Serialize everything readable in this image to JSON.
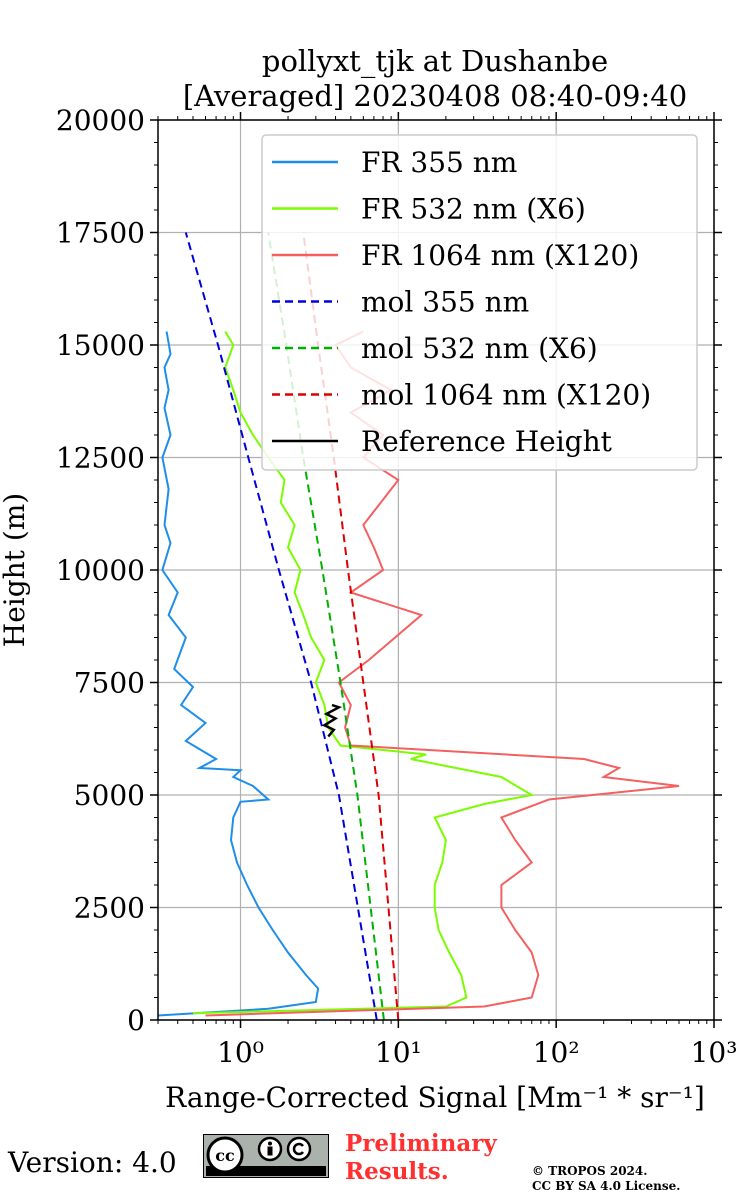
{
  "chart_data": {
    "type": "line",
    "title": "pollyxt_tjk at Dushanbe",
    "subtitle": "[Averaged] 20230408 08:40-09:40",
    "xlabel": "Range-Corrected Signal [Mm⁻¹ * sr⁻¹]",
    "ylabel": "Height (m)",
    "xscale": "log",
    "xlim": [
      0.3,
      1000
    ],
    "ylim": [
      0,
      20000
    ],
    "x_tick_labels": [
      "10⁰",
      "10¹",
      "10²",
      "10³"
    ],
    "y_tick_labels": [
      "0",
      "2500",
      "5000",
      "7500",
      "10000",
      "12500",
      "15000",
      "17500",
      "20000"
    ],
    "grid": true,
    "legend_position": "upper right",
    "series": [
      {
        "name": "FR 355 nm",
        "color": "#1f8ee8",
        "style": "solid",
        "points": [
          [
            0.3,
            100
          ],
          [
            1.5,
            250
          ],
          [
            3.0,
            400
          ],
          [
            3.1,
            700
          ],
          [
            2.6,
            1000
          ],
          [
            2.0,
            1500
          ],
          [
            1.6,
            2000
          ],
          [
            1.3,
            2500
          ],
          [
            1.1,
            3000
          ],
          [
            0.95,
            3500
          ],
          [
            0.87,
            4000
          ],
          [
            0.9,
            4500
          ],
          [
            1.0,
            4850
          ],
          [
            1.5,
            4900
          ],
          [
            1.2,
            5200
          ],
          [
            0.9,
            5400
          ],
          [
            1.0,
            5550
          ],
          [
            0.55,
            5600
          ],
          [
            0.7,
            5800
          ],
          [
            0.45,
            6200
          ],
          [
            0.6,
            6600
          ],
          [
            0.42,
            7000
          ],
          [
            0.5,
            7400
          ],
          [
            0.38,
            7800
          ],
          [
            0.45,
            8500
          ],
          [
            0.35,
            9000
          ],
          [
            0.4,
            9500
          ],
          [
            0.32,
            10000
          ],
          [
            0.36,
            10600
          ],
          [
            0.33,
            11000
          ],
          [
            0.35,
            11800
          ],
          [
            0.32,
            12500
          ],
          [
            0.36,
            13000
          ],
          [
            0.33,
            13600
          ],
          [
            0.35,
            14000
          ],
          [
            0.33,
            14500
          ],
          [
            0.36,
            14800
          ],
          [
            0.34,
            15300
          ]
        ]
      },
      {
        "name": "FR 532 nm (X6)",
        "color": "#7cfc00",
        "style": "solid",
        "points": [
          [
            0.5,
            150
          ],
          [
            20,
            300
          ],
          [
            27,
            500
          ],
          [
            25,
            1000
          ],
          [
            21,
            1500
          ],
          [
            18,
            2000
          ],
          [
            17,
            2500
          ],
          [
            17,
            3000
          ],
          [
            19,
            3500
          ],
          [
            20,
            4000
          ],
          [
            17,
            4500
          ],
          [
            35,
            4800
          ],
          [
            70,
            5000
          ],
          [
            45,
            5400
          ],
          [
            12,
            5800
          ],
          [
            15,
            5900
          ],
          [
            4.3,
            6100
          ],
          [
            3.6,
            6500
          ],
          [
            3.4,
            7000
          ],
          [
            3.0,
            7500
          ],
          [
            3.4,
            8000
          ],
          [
            2.8,
            8500
          ],
          [
            2.5,
            9000
          ],
          [
            2.2,
            9500
          ],
          [
            2.4,
            10000
          ],
          [
            2.0,
            10500
          ],
          [
            2.2,
            11000
          ],
          [
            1.8,
            11500
          ],
          [
            1.9,
            12000
          ],
          [
            1.5,
            12500
          ],
          [
            1.2,
            13000
          ],
          [
            1.0,
            13500
          ],
          [
            0.9,
            14000
          ],
          [
            0.8,
            14500
          ],
          [
            0.9,
            15000
          ],
          [
            0.8,
            15300
          ]
        ]
      },
      {
        "name": "FR 1064 nm (X120)",
        "color": "#f46060",
        "style": "solid",
        "points": [
          [
            0.6,
            100
          ],
          [
            35,
            300
          ],
          [
            70,
            500
          ],
          [
            77,
            1000
          ],
          [
            70,
            1500
          ],
          [
            55,
            2000
          ],
          [
            45,
            2500
          ],
          [
            45,
            3000
          ],
          [
            70,
            3500
          ],
          [
            55,
            4000
          ],
          [
            45,
            4500
          ],
          [
            90,
            4900
          ],
          [
            600,
            5200
          ],
          [
            200,
            5400
          ],
          [
            250,
            5600
          ],
          [
            150,
            5800
          ],
          [
            5.0,
            6100
          ],
          [
            4.6,
            6500
          ],
          [
            5.0,
            7000
          ],
          [
            4.2,
            7500
          ],
          [
            6.5,
            8000
          ],
          [
            14,
            9000
          ],
          [
            5.0,
            9500
          ],
          [
            8.0,
            10000
          ],
          [
            7.0,
            10500
          ],
          [
            6.0,
            11000
          ],
          [
            10,
            12000
          ],
          [
            6.0,
            12500
          ],
          [
            8.0,
            13000
          ],
          [
            5.0,
            13500
          ],
          [
            9.0,
            14000
          ],
          [
            5.0,
            14500
          ],
          [
            4.0,
            15000
          ],
          [
            6.0,
            15300
          ]
        ]
      },
      {
        "name": "mol 355 nm",
        "color": "#0000dd",
        "style": "dashed",
        "points": [
          [
            7.3,
            0
          ],
          [
            4.2,
            5000
          ],
          [
            2.8,
            7500
          ],
          [
            1.75,
            10000
          ],
          [
            1.12,
            12500
          ],
          [
            0.72,
            15000
          ],
          [
            0.45,
            17500
          ]
        ]
      },
      {
        "name": "mol 532 nm (X6)",
        "color": "#00b000",
        "style": "dashed",
        "points": [
          [
            8.1,
            0
          ],
          [
            5.5,
            5000
          ],
          [
            4.3,
            7500
          ],
          [
            3.3,
            10000
          ],
          [
            2.5,
            12500
          ],
          [
            1.95,
            15000
          ],
          [
            1.5,
            17500
          ]
        ]
      },
      {
        "name": "mol 1064 nm (X120)",
        "color": "#dd0000",
        "style": "dashed",
        "points": [
          [
            10,
            0
          ],
          [
            7.5,
            5000
          ],
          [
            6.0,
            7500
          ],
          [
            4.8,
            10000
          ],
          [
            3.9,
            12500
          ],
          [
            3.1,
            15000
          ],
          [
            2.5,
            17500
          ]
        ]
      },
      {
        "name": "Reference Height",
        "color": "#000000",
        "style": "solid",
        "points": [
          [
            3.6,
            6300
          ],
          [
            3.9,
            6450
          ],
          [
            3.4,
            6550
          ],
          [
            4.0,
            6700
          ],
          [
            3.5,
            6800
          ],
          [
            4.2,
            6950
          ],
          [
            3.8,
            7000
          ]
        ]
      }
    ]
  },
  "footer": {
    "version_text": "Version: 4.0",
    "cc_badge_labels": [
      "cc",
      "BY",
      "SA"
    ],
    "preliminary_line1": "Preliminary",
    "preliminary_line2": "Results.",
    "copyright_line1": "© TROPOS 2024.",
    "copyright_line2": "CC BY SA 4.0 License."
  }
}
